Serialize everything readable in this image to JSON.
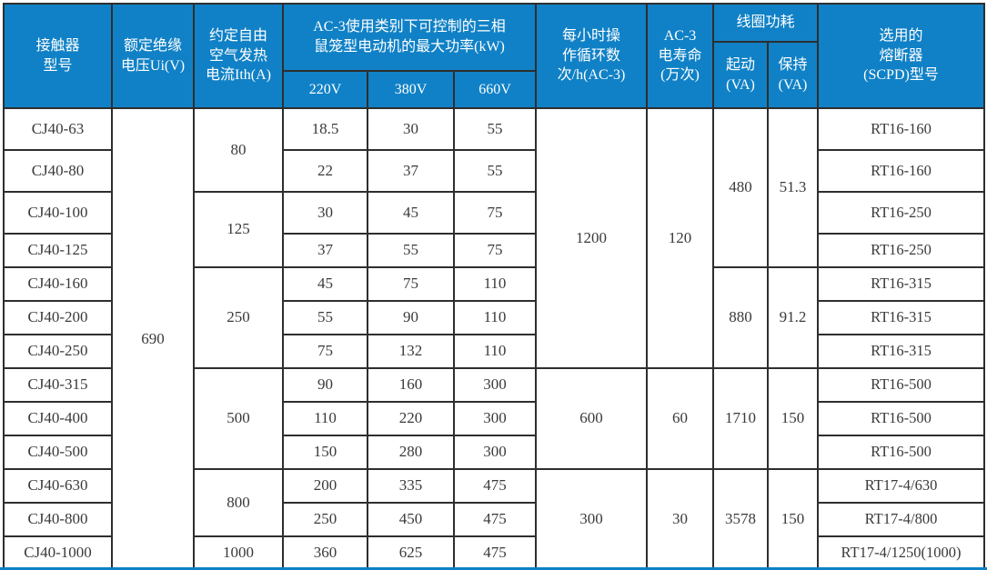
{
  "table": {
    "header": {
      "model": "接触器\n型号",
      "ui": "额定绝缘\n电压Ui(V)",
      "ith": "约定自由\n空气发热\n电流Ith(A)",
      "kw_group": "AC-3使用类别下可控制的三相\n鼠笼型电动机的最大功率(kW)",
      "kw_cols": [
        "220V",
        "380V",
        "660V"
      ],
      "ops": "每小时操\n作循环数\n次/h(AC-3)",
      "life": "AC-3\n电寿命\n(万次)",
      "coil_group": "线圈功耗",
      "coil_start": "起动\n(VA)",
      "coil_hold": "保持\n(VA)",
      "fuse": "选用的\n熔断器\n(SCPD)型号"
    },
    "rows": [
      {
        "model": "CJ40-63",
        "kw220": "18.5",
        "kw380": "30",
        "kw660": "55",
        "fuse": "RT16-160"
      },
      {
        "model": "CJ40-80",
        "kw220": "22",
        "kw380": "37",
        "kw660": "55",
        "fuse": "RT16-160"
      },
      {
        "model": "CJ40-100",
        "kw220": "30",
        "kw380": "45",
        "kw660": "75",
        "fuse": "RT16-250"
      },
      {
        "model": "CJ40-125",
        "kw220": "37",
        "kw380": "55",
        "kw660": "75",
        "fuse": "RT16-250"
      },
      {
        "model": "CJ40-160",
        "kw220": "45",
        "kw380": "75",
        "kw660": "110",
        "fuse": "RT16-315"
      },
      {
        "model": "CJ40-200",
        "kw220": "55",
        "kw380": "90",
        "kw660": "110",
        "fuse": "RT16-315"
      },
      {
        "model": "CJ40-250",
        "kw220": "75",
        "kw380": "132",
        "kw660": "110",
        "fuse": "RT16-315"
      },
      {
        "model": "CJ40-315",
        "kw220": "90",
        "kw380": "160",
        "kw660": "300",
        "fuse": "RT16-500"
      },
      {
        "model": "CJ40-400",
        "kw220": "110",
        "kw380": "220",
        "kw660": "300",
        "fuse": "RT16-500"
      },
      {
        "model": "CJ40-500",
        "kw220": "150",
        "kw380": "280",
        "kw660": "300",
        "fuse": "RT16-500"
      },
      {
        "model": "CJ40-630",
        "kw220": "200",
        "kw380": "335",
        "kw660": "475",
        "fuse": "RT17-4/630"
      },
      {
        "model": "CJ40-800",
        "kw220": "250",
        "kw380": "450",
        "kw660": "475",
        "fuse": "RT17-4/800"
      },
      {
        "model": "CJ40-1000",
        "kw220": "360",
        "kw380": "625",
        "kw660": "475",
        "fuse": "RT17-4/1250(1000)"
      }
    ],
    "merged": {
      "ui": [
        {
          "value": "690",
          "span": 13
        }
      ],
      "ith": [
        {
          "value": "80",
          "span": 2
        },
        {
          "value": "125",
          "span": 2
        },
        {
          "value": "250",
          "span": 3
        },
        {
          "value": "500",
          "span": 3
        },
        {
          "value": "800",
          "span": 2
        },
        {
          "value": "1000",
          "span": 1
        }
      ],
      "ops": [
        {
          "value": "1200",
          "span": 7
        },
        {
          "value": "600",
          "span": 3
        },
        {
          "value": "300",
          "span": 3
        }
      ],
      "life": [
        {
          "value": "120",
          "span": 7
        },
        {
          "value": "60",
          "span": 3
        },
        {
          "value": "30",
          "span": 3
        }
      ],
      "coil_start": [
        {
          "value": "480",
          "span": 4
        },
        {
          "value": "880",
          "span": 3
        },
        {
          "value": "1710",
          "span": 3
        },
        {
          "value": "3578",
          "span": 3
        }
      ],
      "coil_hold": [
        {
          "value": "51.3",
          "span": 4
        },
        {
          "value": "91.2",
          "span": 3
        },
        {
          "value": "150",
          "span": 3
        },
        {
          "value": "150",
          "span": 3
        }
      ]
    }
  },
  "colors": {
    "header_bg": "#1081c6",
    "header_text": "#ffffff",
    "border": "#2e2e2e",
    "body_text": "#3a3a3a"
  }
}
